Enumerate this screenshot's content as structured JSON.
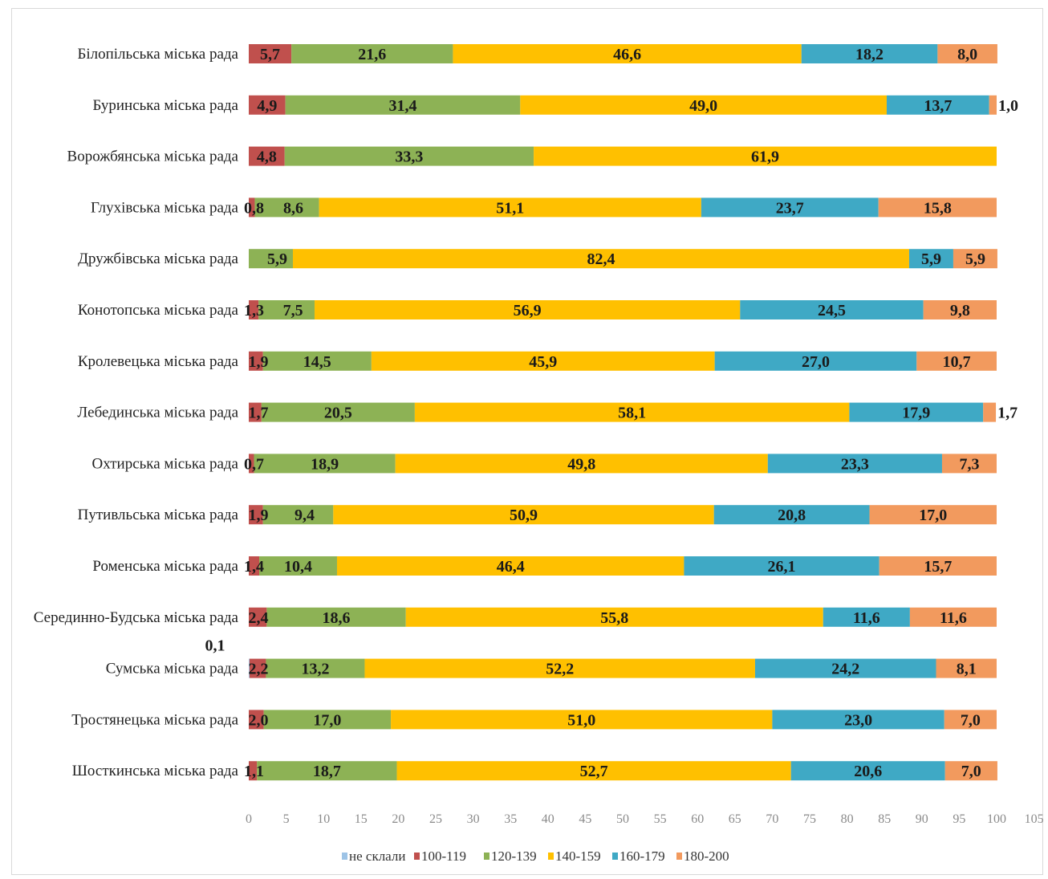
{
  "chart_data": {
    "type": "bar",
    "orientation": "horizontal",
    "stacked": true,
    "categories": [
      "Білопільська  міська рада",
      "Буринська міська рада",
      "Ворожбянська міська рада",
      "Глухівська міська рада",
      "Дружбівська міська рада",
      "Конотопська міська рада",
      "Кролевецька міська рада",
      "Лебединська міська рада",
      "Охтирська міська рада",
      "Путивльська міська рада",
      "Роменська міська рада",
      "Серединно-Будська міська рада",
      "Сумська міська рада",
      "Тростянецька міська рада",
      "Шосткинська міська рада"
    ],
    "series": [
      {
        "name": "не склали",
        "color": "#9DC3E6",
        "values": [
          0,
          0,
          0,
          0,
          0,
          0,
          0,
          0,
          0,
          0,
          0,
          0,
          0.1,
          0,
          0
        ],
        "labels": [
          "",
          "",
          "",
          "",
          "",
          "",
          "",
          "",
          "",
          "",
          "",
          "",
          "0,1",
          "",
          ""
        ]
      },
      {
        "name": "100-119",
        "color": "#C0504D",
        "values": [
          5.7,
          4.9,
          4.8,
          0.8,
          0,
          1.3,
          1.9,
          1.7,
          0.7,
          1.9,
          1.4,
          2.4,
          2.2,
          2.0,
          1.1
        ],
        "labels": [
          "5,7",
          "4,9",
          "4,8",
          "0,8",
          "",
          "1,3",
          "1,9",
          "1,7",
          "0,7",
          "1,9",
          "1,4",
          "2,4",
          "2,2",
          "2,0",
          "1,1"
        ]
      },
      {
        "name": "120-139",
        "color": "#8DB255",
        "values": [
          21.6,
          31.4,
          33.3,
          8.6,
          5.9,
          7.5,
          14.5,
          20.5,
          18.9,
          9.4,
          10.4,
          18.6,
          13.2,
          17.0,
          18.7
        ],
        "labels": [
          "21,6",
          "31,4",
          "33,3",
          "8,6",
          "5,9",
          "7,5",
          "14,5",
          "20,5",
          "18,9",
          "9,4",
          "10,4",
          "18,6",
          "13,2",
          "17,0",
          "18,7"
        ]
      },
      {
        "name": "140-159",
        "color": "#FFC000",
        "values": [
          46.6,
          49.0,
          61.9,
          51.1,
          82.4,
          56.9,
          45.9,
          58.1,
          49.8,
          50.9,
          46.4,
          55.8,
          52.2,
          51.0,
          52.7
        ],
        "labels": [
          "46,6",
          "49,0",
          "61,9",
          "51,1",
          "82,4",
          "56,9",
          "45,9",
          "58,1",
          "49,8",
          "50,9",
          "46,4",
          "55,8",
          "52,2",
          "51,0",
          "52,7"
        ]
      },
      {
        "name": "160-179",
        "color": "#3FA9C5",
        "values": [
          18.2,
          13.7,
          0,
          23.7,
          5.9,
          24.5,
          27.0,
          17.9,
          23.3,
          20.8,
          26.1,
          11.6,
          24.2,
          23.0,
          20.6
        ],
        "labels": [
          "18,2",
          "13,7",
          "",
          "23,7",
          "5,9",
          "24,5",
          "27,0",
          "17,9",
          "23,3",
          "20,8",
          "26,1",
          "11,6",
          "24,2",
          "23,0",
          "20,6"
        ]
      },
      {
        "name": "180-200",
        "color": "#F29A5E",
        "values": [
          8.0,
          1.0,
          0,
          15.8,
          5.9,
          9.8,
          10.7,
          1.7,
          7.3,
          17.0,
          15.7,
          11.6,
          8.1,
          7.0,
          7.0
        ],
        "labels": [
          "8,0",
          "1,0",
          "",
          "15,8",
          "5,9",
          "9,8",
          "10,7",
          "1,7",
          "7,3",
          "17,0",
          "15,7",
          "11,6",
          "8,1",
          "7,0",
          "7,0"
        ]
      }
    ],
    "xlim": [
      0,
      105
    ],
    "x_ticks": [
      "0",
      "5",
      "10",
      "15",
      "20",
      "25",
      "30",
      "35",
      "40",
      "45",
      "50",
      "55",
      "60",
      "65",
      "70",
      "75",
      "80",
      "85",
      "90",
      "95",
      "100",
      "105"
    ],
    "legend_position": "bottom",
    "grid": false
  }
}
